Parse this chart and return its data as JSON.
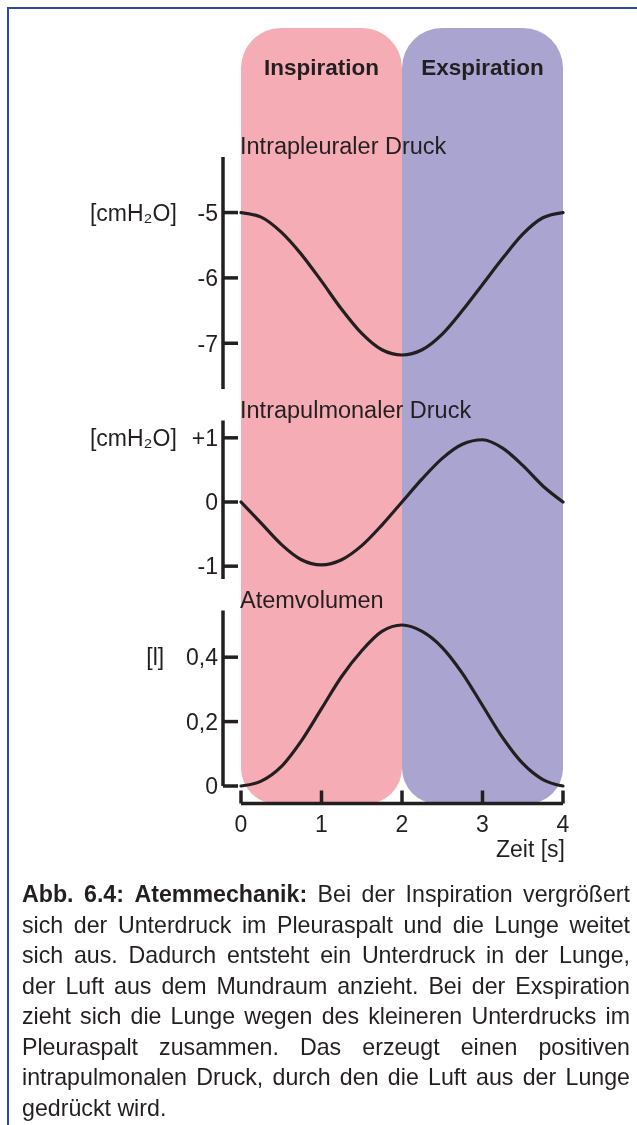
{
  "chart_data": [
    {
      "type": "line",
      "title": "Intrapleuraler Druck",
      "ylabel": "[cmH₂O]",
      "x": [
        0,
        0.25,
        0.5,
        0.75,
        1,
        1.25,
        1.5,
        1.75,
        2,
        2.25,
        2.5,
        2.75,
        3,
        3.25,
        3.5,
        3.75,
        4
      ],
      "series": [
        {
          "color": "#231f20",
          "values": [
            -5.0,
            -5.07,
            -5.3,
            -5.64,
            -6.05,
            -6.48,
            -6.85,
            -7.1,
            -7.18,
            -7.1,
            -6.86,
            -6.5,
            -6.1,
            -5.7,
            -5.33,
            -5.08,
            -5.0
          ]
        }
      ],
      "xlim": [
        0,
        4
      ],
      "ylim": [
        -7.7,
        -4.15
      ],
      "yticks": [
        -7,
        -6,
        -5
      ],
      "tick_labels": "y",
      "bands": [
        {
          "axis": "x",
          "from": 0,
          "to": 2,
          "label": "Inspiration",
          "color": "#f5acb5"
        },
        {
          "axis": "x",
          "from": 2,
          "to": 4,
          "label": "Exspiration",
          "color": "#a9a4d0"
        }
      ]
    },
    {
      "type": "line",
      "title": "Intrapulmonaler Druck",
      "ylabel": "[cmH₂O]",
      "x": [
        0,
        0.25,
        0.5,
        0.75,
        1,
        1.25,
        1.5,
        1.75,
        2,
        2.25,
        2.5,
        2.75,
        3,
        3.25,
        3.5,
        3.75,
        4
      ],
      "series": [
        {
          "color": "#231f20",
          "values": [
            0,
            -0.33,
            -0.66,
            -0.9,
            -0.98,
            -0.9,
            -0.68,
            -0.36,
            0,
            0.36,
            0.68,
            0.9,
            0.97,
            0.84,
            0.57,
            0.25,
            0
          ]
        }
      ],
      "xlim": [
        0,
        4
      ],
      "ylim": [
        -1.2,
        1.27
      ],
      "yticks": [
        -1,
        0,
        {
          "value": 1,
          "label": "+1"
        }
      ],
      "tick_labels": "y",
      "bands": [
        {
          "axis": "x",
          "from": 0,
          "to": 2,
          "color": "#f5acb5"
        },
        {
          "axis": "x",
          "from": 2,
          "to": 4,
          "color": "#a9a4d0"
        }
      ]
    },
    {
      "type": "line",
      "title": "Atemvolumen",
      "ylabel": "[l]",
      "xlabel": "Zeit [s]",
      "x": [
        0,
        0.25,
        0.5,
        0.75,
        1,
        1.25,
        1.5,
        1.75,
        2,
        2.25,
        2.5,
        2.75,
        3,
        3.25,
        3.5,
        3.75,
        4
      ],
      "series": [
        {
          "color": "#231f20",
          "values": [
            0,
            0.015,
            0.06,
            0.14,
            0.24,
            0.34,
            0.42,
            0.48,
            0.5,
            0.48,
            0.43,
            0.35,
            0.25,
            0.15,
            0.07,
            0.02,
            0
          ]
        }
      ],
      "xlim": [
        0,
        4
      ],
      "ylim": [
        0,
        0.545
      ],
      "xticks": [
        0,
        1,
        2,
        3,
        4
      ],
      "yticks": [
        0,
        {
          "value": 0.2,
          "label": "0,2"
        },
        {
          "value": 0.4,
          "label": "0,4"
        }
      ],
      "bands": [
        {
          "axis": "x",
          "from": 0,
          "to": 2,
          "color": "#f5acb5"
        },
        {
          "axis": "x",
          "from": 2,
          "to": 4,
          "color": "#a9a4d0"
        }
      ],
      "annotations": [
        "Abb. 6.4: Atemmechanik:",
        "Bei der Inspiration vergrößert",
        "sich der Unterdruck im Pleuraspalt und die Lunge weitet sich aus. Dadurch entsteht ein Unterdruck in der Lunge, der Luft aus dem Mundraum anzieht. Bei der Exspiration zieht sich die Lunge wegen des kleineren Unterdrucks im Pleuraspalt zusammen. Das erzeugt einen positiven intrapulmonalen Druck, durch den die Luft aus der Lunge gedrückt wird."
      ]
    }
  ]
}
